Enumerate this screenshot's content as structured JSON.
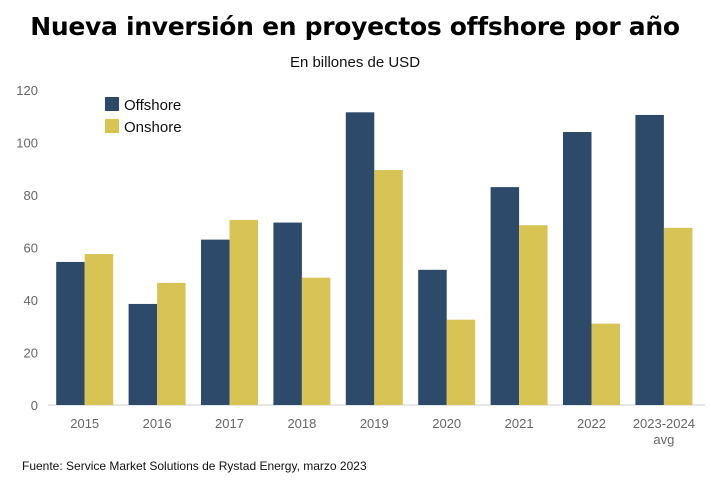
{
  "title": "Nueva inversión en proyectos offshore por año",
  "subtitle": "En billones de USD",
  "source": "Fuente: Service Market Solutions de Rystad Energy, marzo 2023",
  "chart_data": {
    "type": "bar",
    "title": "Nueva inversión en proyectos offshore por año",
    "subtitle": "En billones de USD",
    "xlabel": "",
    "ylabel": "",
    "ylim": [
      0,
      120
    ],
    "yticks": [
      0,
      20,
      40,
      60,
      80,
      100,
      120
    ],
    "grid": false,
    "legend": "top-left",
    "categories": [
      "2015",
      "2016",
      "2017",
      "2018",
      "2019",
      "2020",
      "2021",
      "2022",
      "2023-2024 avg"
    ],
    "series": [
      {
        "name": "Offshore",
        "color": "#2d4a6b",
        "values": [
          54.5,
          38.5,
          63,
          69.5,
          111.5,
          51.5,
          83,
          104,
          110.5
        ]
      },
      {
        "name": "Onshore",
        "color": "#d8c455",
        "values": [
          57.5,
          46.5,
          70.5,
          48.5,
          89.5,
          32.5,
          68.5,
          31,
          67.5
        ]
      }
    ]
  }
}
